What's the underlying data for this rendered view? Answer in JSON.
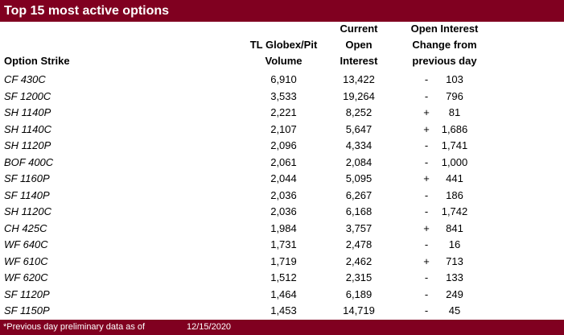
{
  "title": "Top 15 most active options",
  "headers": {
    "strike": "Option Strike",
    "volume": [
      "TL Globex/Pit",
      "Volume"
    ],
    "open_interest": [
      "Current",
      "Open",
      "Interest"
    ],
    "change": [
      "Open Interest",
      "Change from",
      "previous day"
    ]
  },
  "rows": [
    {
      "strike": "CF 430C",
      "volume": "6,910",
      "oi": "13,422",
      "sign": "-",
      "change": "103"
    },
    {
      "strike": "SF 1200C",
      "volume": "3,533",
      "oi": "19,264",
      "sign": "-",
      "change": "796"
    },
    {
      "strike": "SH 1140P",
      "volume": "2,221",
      "oi": "8,252",
      "sign": "+",
      "change": "81"
    },
    {
      "strike": "SH 1140C",
      "volume": "2,107",
      "oi": "5,647",
      "sign": "+",
      "change": "1,686"
    },
    {
      "strike": "SH 1120P",
      "volume": "2,096",
      "oi": "4,334",
      "sign": "-",
      "change": "1,741"
    },
    {
      "strike": "BOF 400C",
      "volume": "2,061",
      "oi": "2,084",
      "sign": "-",
      "change": "1,000"
    },
    {
      "strike": "SF 1160P",
      "volume": "2,044",
      "oi": "5,095",
      "sign": "+",
      "change": "441"
    },
    {
      "strike": "SF 1140P",
      "volume": "2,036",
      "oi": "6,267",
      "sign": "-",
      "change": "186"
    },
    {
      "strike": "SH 1120C",
      "volume": "2,036",
      "oi": "6,168",
      "sign": "-",
      "change": "1,742"
    },
    {
      "strike": "CH 425C",
      "volume": "1,984",
      "oi": "3,757",
      "sign": "+",
      "change": "841"
    },
    {
      "strike": "WF 640C",
      "volume": "1,731",
      "oi": "2,478",
      "sign": "-",
      "change": "16"
    },
    {
      "strike": "WF 610C",
      "volume": "1,719",
      "oi": "2,462",
      "sign": "+",
      "change": "713"
    },
    {
      "strike": "WF 620C",
      "volume": "1,512",
      "oi": "2,315",
      "sign": "-",
      "change": "133"
    },
    {
      "strike": "SF 1120P",
      "volume": "1,464",
      "oi": "6,189",
      "sign": "-",
      "change": "249"
    },
    {
      "strike": "SF 1150P",
      "volume": "1,453",
      "oi": "14,719",
      "sign": "-",
      "change": "45"
    }
  ],
  "footer": {
    "note": "*Previous day preliminary data as of",
    "date": "12/15/2020"
  },
  "colors": {
    "accent": "#800020"
  }
}
